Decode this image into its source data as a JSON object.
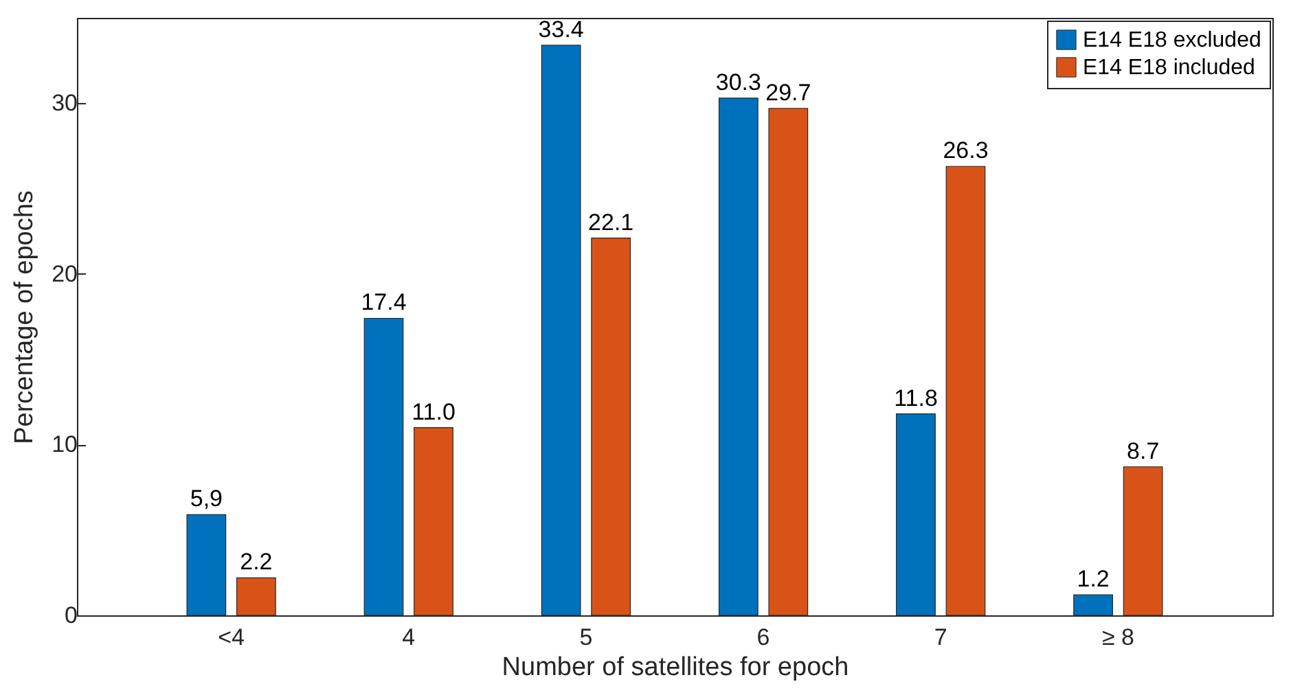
{
  "chart_data": {
    "type": "bar",
    "xlabel": "Number of satellites for epoch",
    "ylabel": "Percentage of epochs",
    "categories": [
      "<4",
      "4",
      "5",
      "6",
      "7",
      "≥ 8"
    ],
    "series": [
      {
        "name": "E14 E18 excluded",
        "color": "#0072bd",
        "values": [
          5.9,
          17.4,
          33.4,
          30.3,
          11.8,
          1.2
        ],
        "value_labels": [
          "5,9",
          "17.4",
          "33.4",
          "30.3",
          "11.8",
          "1.2"
        ]
      },
      {
        "name": "E14 E18 included",
        "color": "#d95319",
        "values": [
          2.2,
          11.0,
          22.1,
          29.7,
          26.3,
          8.7
        ],
        "value_labels": [
          "2.2",
          "11.0",
          "22.1",
          "29.7",
          "26.3",
          "8.7"
        ]
      }
    ],
    "ylim": [
      0,
      35
    ],
    "yticks": [
      0,
      10,
      20,
      30
    ],
    "legend": "top right"
  }
}
